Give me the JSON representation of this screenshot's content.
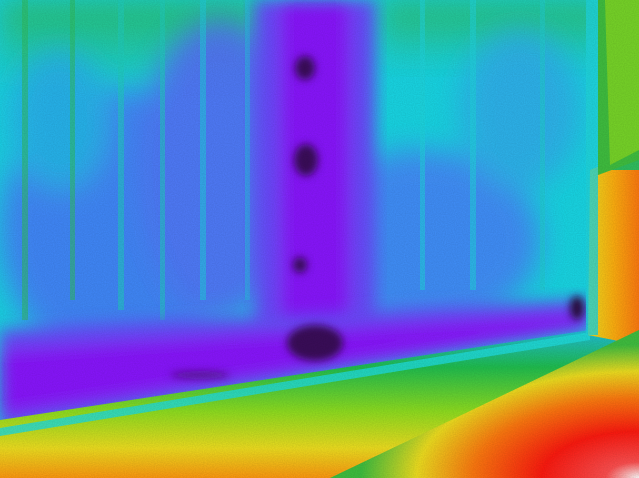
{
  "image": {
    "kind": "thermal-image",
    "palette": {
      "coldest": "#3a0a5a",
      "cold": "#8a16ff",
      "cool": "#4a6cff",
      "mild": "#19e6e6",
      "warm": "#20c040",
      "warmer": "#e8e020",
      "hot": "#ff7a10",
      "hottest": "#ff1a10",
      "peak": "#ffffff"
    }
  }
}
